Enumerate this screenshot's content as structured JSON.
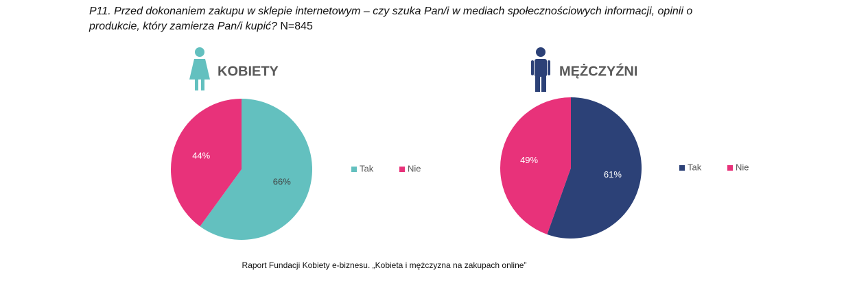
{
  "title": "P11. Przed dokonaniem zakupu w sklepie internetowym – czy szuka Pan/i w mediach społecznościowych informacji, opinii o produkcie, który zamierza Pan/i kupić?",
  "note": "N=845",
  "source": "Raport Fundacji Kobiety e-biznesu. „Kobieta i mężczyzna na zakupach online”",
  "chart_data": [
    {
      "type": "pie",
      "title": "KOBIETY",
      "categories": [
        "Tak",
        "Nie"
      ],
      "values": [
        66,
        44
      ],
      "value_labels": [
        "66%",
        "44%"
      ],
      "colors": [
        "#63c0bf",
        "#e8327a"
      ]
    },
    {
      "type": "pie",
      "title": "MĘŻCZYŹNI",
      "categories": [
        "Tak",
        "Nie"
      ],
      "values": [
        61,
        49
      ],
      "value_labels": [
        "61%",
        "49%"
      ],
      "colors": [
        "#2c4177",
        "#e8327a"
      ]
    }
  ]
}
